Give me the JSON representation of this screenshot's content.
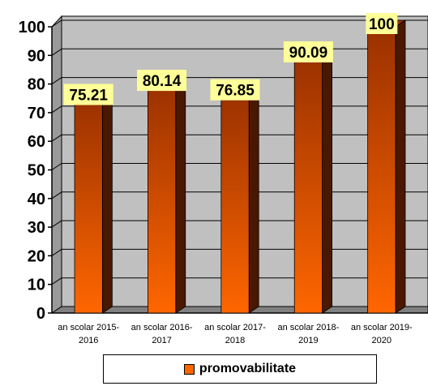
{
  "chart_data": {
    "type": "bar",
    "categories": [
      "an scolar 2015-2016",
      "an scolar 2016-2017",
      "an scolar 2017-2018",
      "an scolar 2018-2019",
      "an scolar 2019-2020"
    ],
    "category_lines": [
      [
        "an scolar 2015-",
        "2016"
      ],
      [
        "an scolar 2016-",
        "2017"
      ],
      [
        "an scolar 2017-",
        "2018"
      ],
      [
        "an scolar 2018-",
        "2019"
      ],
      [
        "an scolar 2019-",
        "2020"
      ]
    ],
    "series": [
      {
        "name": "promovabilitate",
        "values": [
          75.21,
          80.14,
          76.85,
          90.09,
          100
        ]
      }
    ],
    "data_labels": [
      "75.21",
      "80.14",
      "76.85",
      "90.09",
      "100"
    ],
    "y_ticks": [
      "0",
      "10",
      "20",
      "30",
      "40",
      "50",
      "60",
      "70",
      "80",
      "90",
      "100"
    ],
    "ylim": [
      0,
      100
    ],
    "grid": true,
    "three_d": true,
    "legend_position": "bottom"
  },
  "colors": {
    "plot_wall": "#c0c0c0",
    "floor": "#808080",
    "bar_top": "#9a3100",
    "bar_bottom": "#ff6600",
    "bar_side": "#4a1800",
    "label_bg": "#ffff99"
  }
}
